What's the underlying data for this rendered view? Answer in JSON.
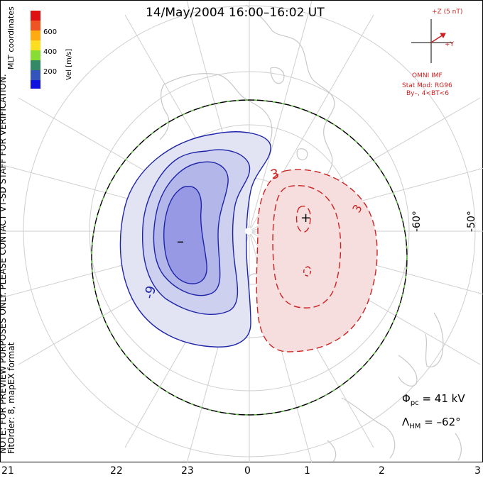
{
  "title": "14/May/2004  16:00–16:02  UT",
  "colorbar": {
    "label": "Vel [m/s]",
    "ticks": [
      "600",
      "400",
      "200"
    ],
    "colors": [
      "#dd1111",
      "#ee5522",
      "#ffaa11",
      "#88dd33",
      "#33bb33",
      "#338866",
      "#3355bb",
      "#1111dd"
    ]
  },
  "coord_label": "MLT coordinates",
  "imf": {
    "z_label": "+Z (5 nT)",
    "y_label": "+Y",
    "source": "OMNI IMF",
    "model": "Stat Mod: RG96",
    "model_range": "By–, 4<BT<6",
    "color": "#cc2222"
  },
  "note_line1": "NOTE: FOR PREVIEW PURPOSES ONLY. PLEASE CONTACT VT-SD STAFF FOR VERIFICATION.",
  "note_line2": "FitOrder: 8, mapEX format",
  "lat_labels": [
    "-60°",
    "-50°"
  ],
  "mlt_labels": [
    "21",
    "22",
    "23",
    "0",
    "1",
    "2",
    "3"
  ],
  "phi_pc": {
    "symbol": "Φ",
    "sub": "pc",
    "text": "= 41 kV"
  },
  "lambda_hm": {
    "symbol": "Λ",
    "sub": "HM",
    "text": "= –62°"
  },
  "contour_labels": {
    "neg": "-9",
    "pos1": "3",
    "pos2": "3"
  },
  "markers": {
    "min": "–",
    "max": "+"
  },
  "colors": {
    "neg_fill": [
      "#e2e4f4",
      "#cdd0ee",
      "#b3b6e9",
      "#9899e4"
    ],
    "neg_line": "#1e24a8",
    "pos_fill": "#f7dede",
    "pos_line": "#cc2222",
    "boundary_green": "#66cc44"
  }
}
